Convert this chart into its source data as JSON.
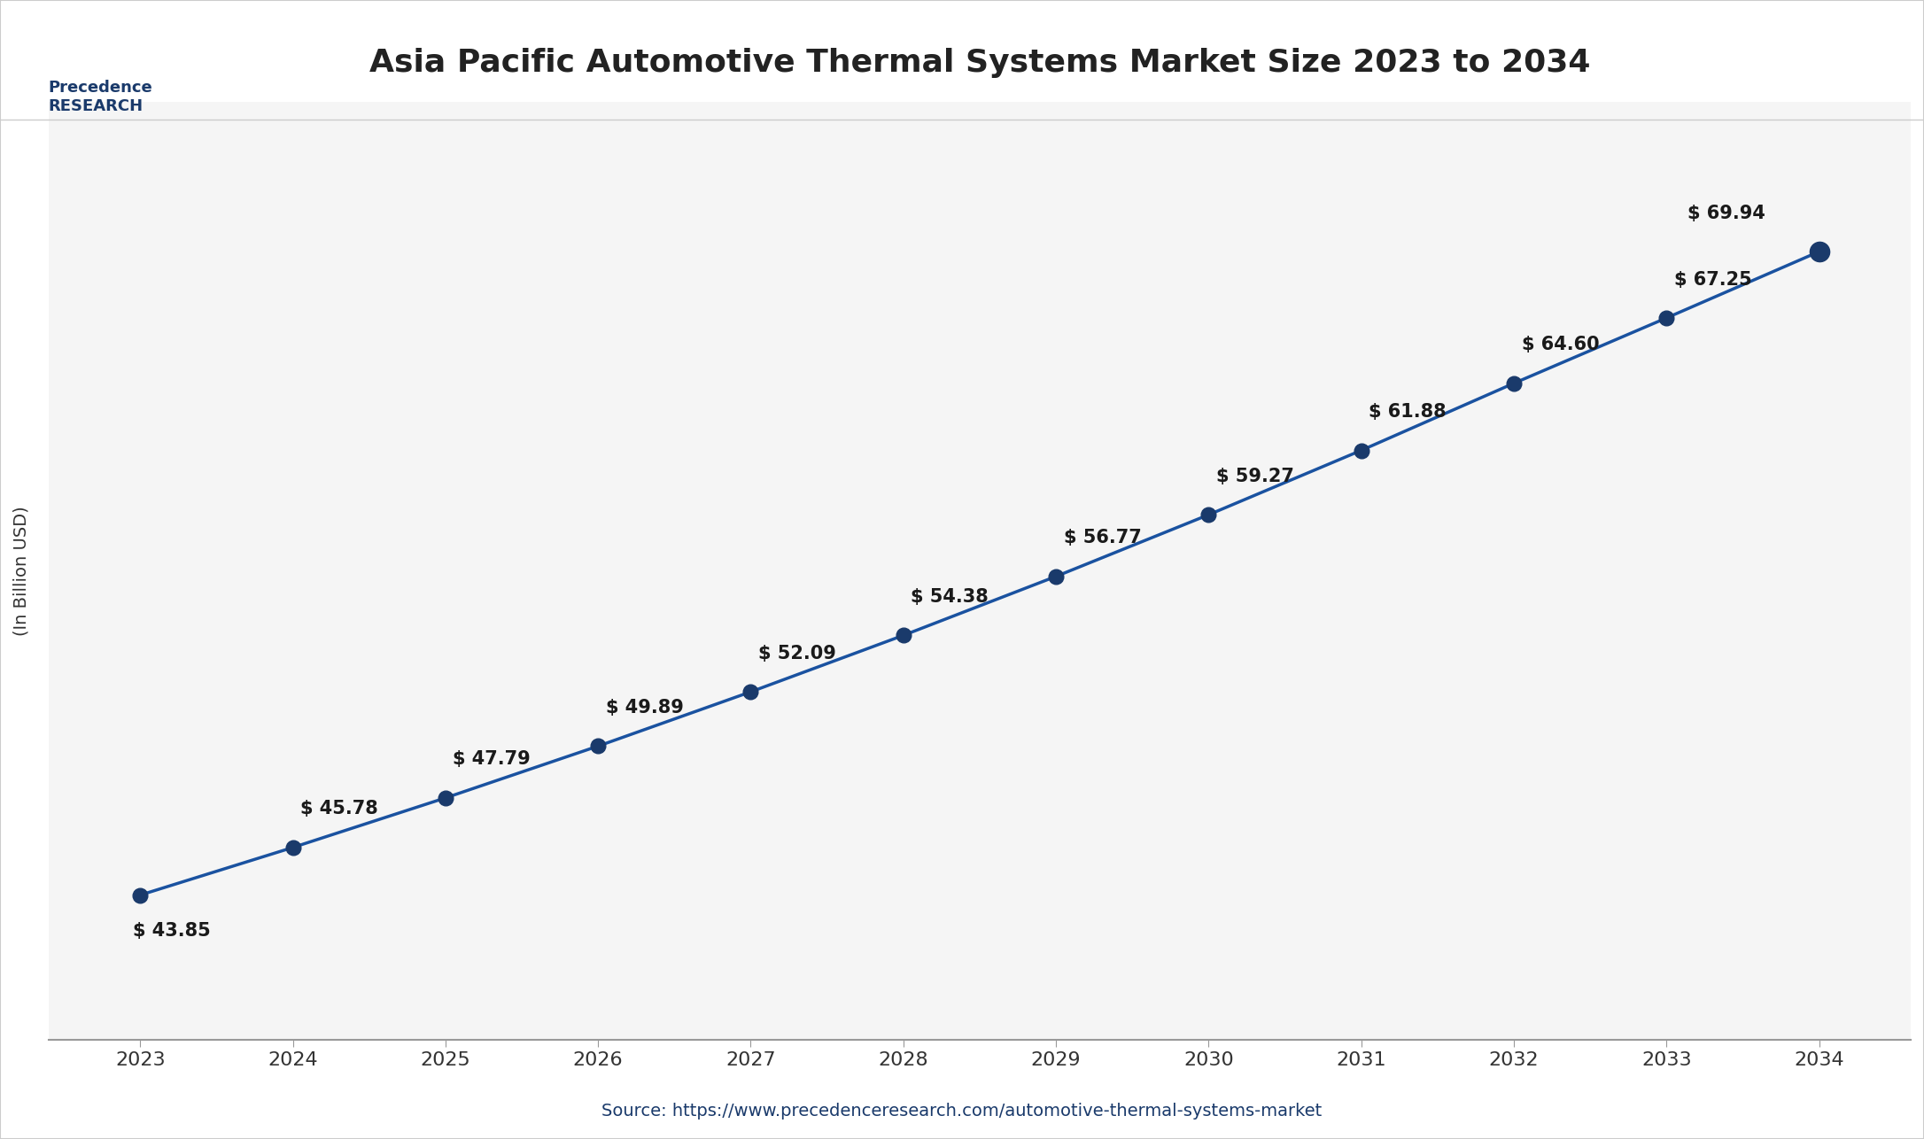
{
  "title": "Asia Pacific Automotive Thermal Systems Market Size 2023 to 2034",
  "ylabel": "(In Billion USD)",
  "source_text": "Source: https://www.precedenceresearch.com/automotive-thermal-systems-market",
  "years": [
    2023,
    2024,
    2025,
    2026,
    2027,
    2028,
    2029,
    2030,
    2031,
    2032,
    2033,
    2034
  ],
  "values": [
    43.85,
    45.78,
    47.79,
    49.89,
    52.09,
    54.38,
    56.77,
    59.27,
    61.88,
    64.6,
    67.25,
    69.94
  ],
  "line_color": "#1a52a0",
  "marker_color": "#1a3a6b",
  "marker_size": 12,
  "line_width": 2.5,
  "title_fontsize": 26,
  "label_fontsize": 14,
  "annotation_fontsize": 15,
  "tick_fontsize": 16,
  "source_fontsize": 14,
  "background_color": "#ffffff",
  "plot_bg_color": "#f5f5f5",
  "border_color": "#cccccc",
  "title_color": "#222222",
  "annotation_color": "#1a1a1a",
  "ylabel_color": "#333333",
  "source_color": "#1a3a6b",
  "ylim": [
    38,
    76
  ],
  "xlim": [
    2022.4,
    2034.6
  ]
}
